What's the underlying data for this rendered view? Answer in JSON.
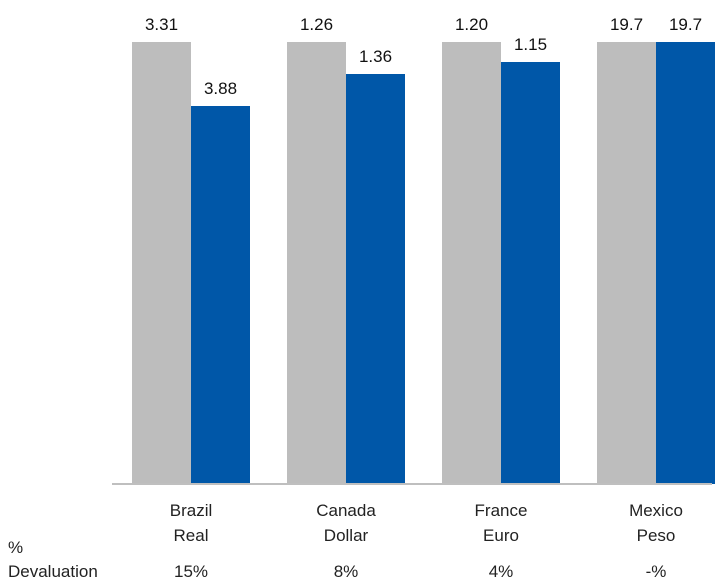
{
  "chart_data": {
    "type": "bar",
    "categories": [
      {
        "line1": "Brazil",
        "line2": "Real"
      },
      {
        "line1": "Canada",
        "line2": "Dollar"
      },
      {
        "line1": "France",
        "line2": "Euro"
      },
      {
        "line1": "Mexico",
        "line2": "Peso"
      }
    ],
    "series": [
      {
        "color": "#bdbdbd",
        "values": [
          3.31,
          1.26,
          1.2,
          19.7
        ],
        "labels": [
          "3.31",
          "1.26",
          "1.20",
          "19.7"
        ]
      },
      {
        "color": "#0057a8",
        "values": [
          3.88,
          1.36,
          1.15,
          19.7
        ],
        "labels": [
          "3.88",
          "1.36",
          "1.15",
          "19.7"
        ]
      }
    ],
    "row_label": {
      "line1": "%",
      "line2": "Devaluation"
    },
    "devaluation": [
      "15%",
      "8%",
      "4%",
      "-%"
    ],
    "axis_color": "#bfbfbf"
  }
}
